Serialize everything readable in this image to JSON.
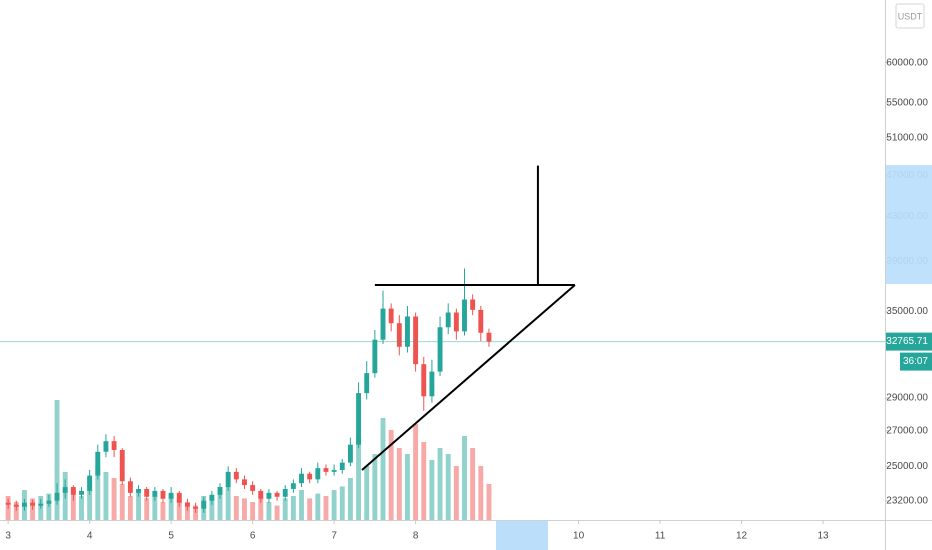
{
  "chart_data": {
    "type": "candlestick",
    "currency": "USDT",
    "log_scale": true,
    "x": [
      3.0,
      3.1,
      3.2,
      3.3,
      3.4,
      3.5,
      3.6,
      3.7,
      3.8,
      3.9,
      4.0,
      4.1,
      4.2,
      4.3,
      4.4,
      4.5,
      4.6,
      4.7,
      4.8,
      4.9,
      5.0,
      5.1,
      5.2,
      5.3,
      5.4,
      5.5,
      5.6,
      5.7,
      5.8,
      5.9,
      6.0,
      6.1,
      6.2,
      6.3,
      6.4,
      6.5,
      6.6,
      6.7,
      6.8,
      6.9,
      7.0,
      7.1,
      7.2,
      7.3,
      7.4,
      7.5,
      7.6,
      7.7,
      7.8,
      7.9,
      8.0,
      8.1,
      8.2,
      8.3,
      8.4,
      8.5,
      8.6,
      8.7,
      8.8,
      8.9
    ],
    "open": [
      23100,
      23000,
      22900,
      23100,
      22950,
      23050,
      23200,
      23600,
      23900,
      23500,
      23700,
      24500,
      25800,
      26400,
      25900,
      24200,
      23600,
      23800,
      23400,
      23700,
      23300,
      23600,
      23100,
      22900,
      22800,
      23200,
      23500,
      23900,
      24700,
      24300,
      24000,
      23700,
      23300,
      23600,
      23400,
      23800,
      24100,
      24600,
      24300,
      24900,
      24700,
      24800,
      25200,
      26200,
      29300,
      30600,
      32900,
      35200,
      34100,
      32400,
      34600,
      31200,
      29100,
      30700,
      33800,
      34900,
      33500,
      35900,
      35100,
      33400
    ],
    "high": [
      23300,
      23200,
      23300,
      23250,
      23300,
      23500,
      24100,
      24300,
      24000,
      23900,
      24800,
      26200,
      26800,
      26700,
      26000,
      24400,
      24000,
      23900,
      23900,
      23800,
      23900,
      23700,
      23300,
      23100,
      23400,
      23700,
      24100,
      25000,
      24900,
      24500,
      24200,
      23800,
      23800,
      23700,
      24000,
      24300,
      24900,
      24700,
      25200,
      25100,
      25100,
      25400,
      26600,
      30000,
      31400,
      33600,
      36600,
      35600,
      34700,
      35400,
      34900,
      31700,
      31500,
      34600,
      35600,
      35200,
      38400,
      36300,
      35400,
      33700
    ],
    "low": [
      22800,
      22700,
      22700,
      22750,
      22800,
      22900,
      23000,
      23300,
      23200,
      23300,
      23500,
      24300,
      25500,
      25500,
      24000,
      23400,
      23400,
      23200,
      23200,
      23100,
      23100,
      22900,
      22700,
      22600,
      22600,
      23000,
      23300,
      23700,
      24100,
      23800,
      23500,
      23100,
      23100,
      23200,
      23200,
      23600,
      23900,
      24100,
      24100,
      24500,
      24500,
      24600,
      25000,
      26000,
      28900,
      30300,
      32600,
      33500,
      31800,
      32000,
      30700,
      28200,
      28700,
      30400,
      33300,
      32900,
      33200,
      34700,
      32800,
      32400
    ],
    "close": [
      23000,
      22900,
      23100,
      22950,
      23050,
      23200,
      23600,
      23900,
      23500,
      23700,
      24500,
      25800,
      26400,
      25900,
      24200,
      23600,
      23800,
      23400,
      23700,
      23300,
      23600,
      23100,
      22900,
      22800,
      23200,
      23500,
      23900,
      24700,
      24300,
      24000,
      23700,
      23300,
      23600,
      23400,
      23800,
      24100,
      24600,
      24300,
      24900,
      24700,
      24800,
      25200,
      26200,
      29300,
      30600,
      32900,
      35200,
      34100,
      32400,
      34600,
      31200,
      29100,
      30700,
      33800,
      34900,
      33500,
      35900,
      35100,
      33400,
      32765.71
    ],
    "volume": [
      20,
      15,
      25,
      18,
      20,
      22,
      100,
      40,
      25,
      20,
      35,
      45,
      40,
      35,
      30,
      20,
      25,
      18,
      20,
      15,
      22,
      18,
      15,
      12,
      20,
      18,
      25,
      28,
      20,
      18,
      15,
      20,
      15,
      12,
      18,
      20,
      25,
      18,
      22,
      20,
      25,
      28,
      35,
      70,
      45,
      55,
      85,
      75,
      60,
      55,
      80,
      65,
      50,
      60,
      55,
      45,
      70,
      60,
      45,
      30
    ],
    "volume_ylim": [
      0,
      100
    ],
    "up_color": "#26a69a",
    "down_color": "#ef5350",
    "xlim": [
      2.9,
      13.76
    ],
    "xticks": [
      3,
      4,
      5,
      6,
      7,
      8,
      10,
      11,
      12,
      13
    ],
    "ylim": [
      22250,
      68750
    ],
    "yticks": [
      {
        "value": 23200,
        "label": "23200.00"
      },
      {
        "value": 25000,
        "label": "25000.00"
      },
      {
        "value": 27000,
        "label": "27000.00"
      },
      {
        "value": 29000,
        "label": "29000.00"
      },
      {
        "value": 35000,
        "label": "35000.00"
      },
      {
        "value": 39000,
        "label": "39000.00"
      },
      {
        "value": 43000,
        "label": "43000.00"
      },
      {
        "value": 47000,
        "label": "47000.00"
      },
      {
        "value": 51000,
        "label": "51000.00"
      },
      {
        "value": 55000,
        "label": "55000.00"
      },
      {
        "value": 60000,
        "label": "60000.00"
      }
    ],
    "last_price": 32765.71,
    "countdown": "36:07",
    "drawings": [
      {
        "x": [
          7.5,
          9.955
        ],
        "y": [
          37050,
          37050
        ]
      },
      {
        "x": [
          7.342,
          9.955
        ],
        "y": [
          24800,
          37050
        ]
      },
      {
        "x": [
          9.501,
          9.501
        ],
        "y": [
          37050,
          48000
        ]
      }
    ]
  }
}
